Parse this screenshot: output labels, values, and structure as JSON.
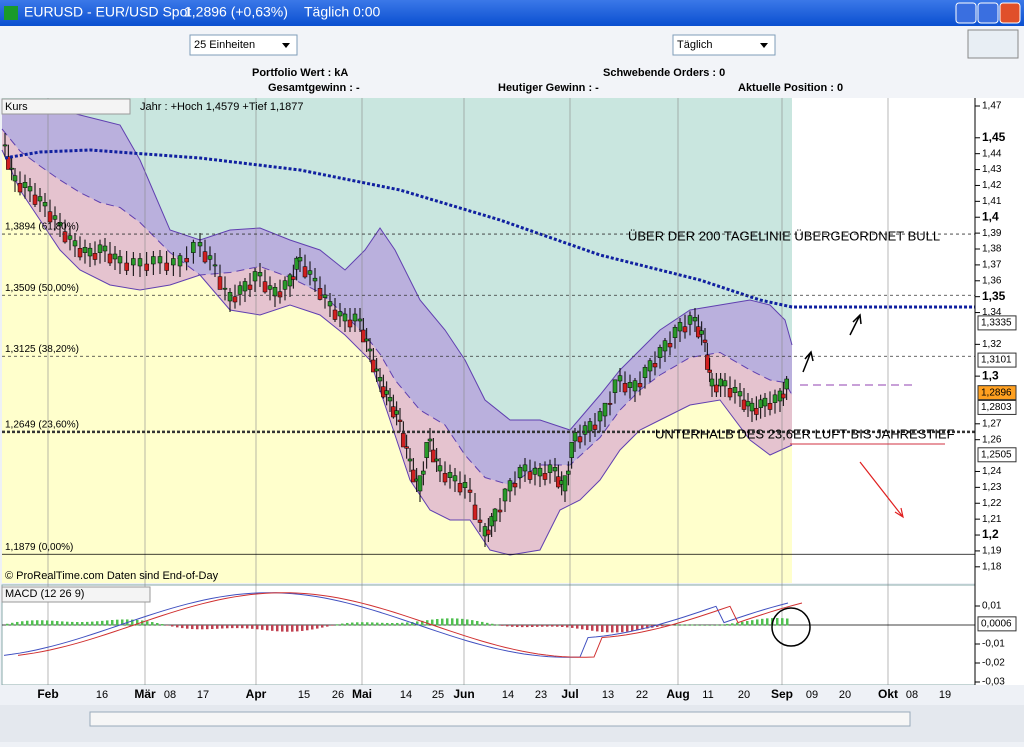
{
  "window": {
    "title": "EURUSD - EUR/USD Spot",
    "price": "1,2896 (+0,63%)",
    "period": "Täglich  0:00"
  },
  "toolbar": {
    "units": "25 Einheiten",
    "interval": "Täglich"
  },
  "info": {
    "portfolio": "Portfolio Wert : kA",
    "pending": "Schwebende Orders : 0",
    "total": "Gesamtgewinn : -",
    "today": "Heutiger Gewinn : -",
    "position": "Aktuelle Position : 0"
  },
  "price_chart": {
    "name": "Kurs",
    "range_info": "Jahr : +Hoch 1,4579 +Tief 1,1877",
    "copyright": "© ProRealTime.com  Daten sind End-of-Day",
    "yticks": [
      {
        "value": 1.47,
        "label": "1,47"
      },
      {
        "value": 1.45,
        "label": "1,45"
      },
      {
        "value": 1.44,
        "label": "1,44"
      },
      {
        "value": 1.43,
        "label": "1,43"
      },
      {
        "value": 1.42,
        "label": "1,42"
      },
      {
        "value": 1.41,
        "label": "1,41"
      },
      {
        "value": 1.4,
        "label": "1,4"
      },
      {
        "value": 1.39,
        "label": "1,39"
      },
      {
        "value": 1.38,
        "label": "1,38"
      },
      {
        "value": 1.37,
        "label": "1,37"
      },
      {
        "value": 1.36,
        "label": "1,36"
      },
      {
        "value": 1.35,
        "label": "1,35"
      },
      {
        "value": 1.34,
        "label": "1,34"
      },
      {
        "value": 1.32,
        "label": "1,32"
      },
      {
        "value": 1.3,
        "label": "1,3"
      },
      {
        "value": 1.27,
        "label": "1,27"
      },
      {
        "value": 1.26,
        "label": "1,26"
      },
      {
        "value": 1.24,
        "label": "1,24"
      },
      {
        "value": 1.23,
        "label": "1,23"
      },
      {
        "value": 1.22,
        "label": "1,22"
      },
      {
        "value": 1.21,
        "label": "1,21"
      },
      {
        "value": 1.2,
        "label": "1,2"
      },
      {
        "value": 1.19,
        "label": "1,19"
      },
      {
        "value": 1.18,
        "label": "1,18"
      }
    ],
    "markers": [
      {
        "value": 1.3335,
        "label": "1,3335"
      },
      {
        "value": 1.3101,
        "label": "1,3101"
      },
      {
        "value": 1.2896,
        "label": "1,2896"
      },
      {
        "value": 1.2803,
        "label": "1,2803"
      },
      {
        "value": 1.2505,
        "label": "1,2505"
      }
    ],
    "fib_levels": [
      {
        "value": 1.3894,
        "label": "1,3894 (61,80%)"
      },
      {
        "value": 1.3509,
        "label": "1,3509 (50,00%)"
      },
      {
        "value": 1.3125,
        "label": "1,3125 (38,20%)"
      },
      {
        "value": 1.2649,
        "label": "1,2649 (23,60%)"
      },
      {
        "value": 1.1879,
        "label": "1,1879 (0,00%)"
      }
    ],
    "annotations": [
      "ÜBER DER 200 TAGELINIE ÜBERGEORDNET BULL",
      "UNTERHALB DES 23,6ER LUFT BIS JAHRESTIEF"
    ]
  },
  "macd": {
    "name": "MACD (12 26 9)",
    "yticks": [
      {
        "value": 0.01,
        "label": "0,01"
      },
      {
        "value": -0.01,
        "label": "-0,01"
      },
      {
        "value": -0.02,
        "label": "-0,02"
      },
      {
        "value": -0.03,
        "label": "-0,03"
      }
    ],
    "marker": {
      "value": 0.0006,
      "label": "0,0006"
    }
  },
  "x_labels": [
    "Feb",
    "16",
    "Mär",
    "08",
    "17",
    "Apr",
    "15",
    "26",
    "Mai",
    "14",
    "25",
    "Jun",
    "14",
    "23",
    "Jul",
    "13",
    "22",
    "Aug",
    "11",
    "20",
    "Sep",
    "09",
    "20",
    "Okt",
    "08",
    "19"
  ]
}
